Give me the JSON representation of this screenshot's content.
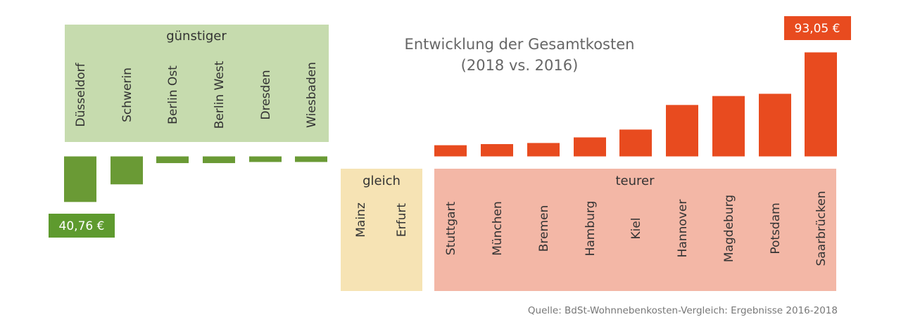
{
  "chart_data": {
    "type": "bar",
    "title_line1": "Entwicklung der Gesamtkosten",
    "title_line2": "(2018 vs. 2016)",
    "groups": {
      "cheaper": "günstiger",
      "equal": "gleich",
      "pricier": "teurer"
    },
    "categories": [
      "Düsseldorf",
      "Schwerin",
      "Berlin Ost",
      "Berlin West",
      "Dresden",
      "Wiesbaden",
      "Mainz",
      "Erfurt",
      "Stuttgart",
      "München",
      "Bremen",
      "Hamburg",
      "Kiel",
      "Hannover",
      "Magdeburg",
      "Potsdam",
      "Saarbrücken"
    ],
    "values": [
      -40.76,
      -25.0,
      -6.0,
      -6.0,
      -5.0,
      -5.0,
      0,
      0,
      10.0,
      11.0,
      12.0,
      17.0,
      24.0,
      46.0,
      54.0,
      56.0,
      93.05
    ],
    "min_callout": "40,76 €",
    "max_callout": "93,05 €",
    "source": "Quelle: BdSt-Wohnnebenkosten-Vergleich: Ergebnisse 2016-2018",
    "colors": {
      "negative_bar": "#6a9a35",
      "positive_bar": "#e84b1f",
      "cheaper_bg": "#c6dbae",
      "equal_bg": "#f6e3b4",
      "pricier_bg": "#f3b7a6",
      "negative_callout": "#5e9a2e",
      "positive_callout": "#e84b1f"
    }
  }
}
